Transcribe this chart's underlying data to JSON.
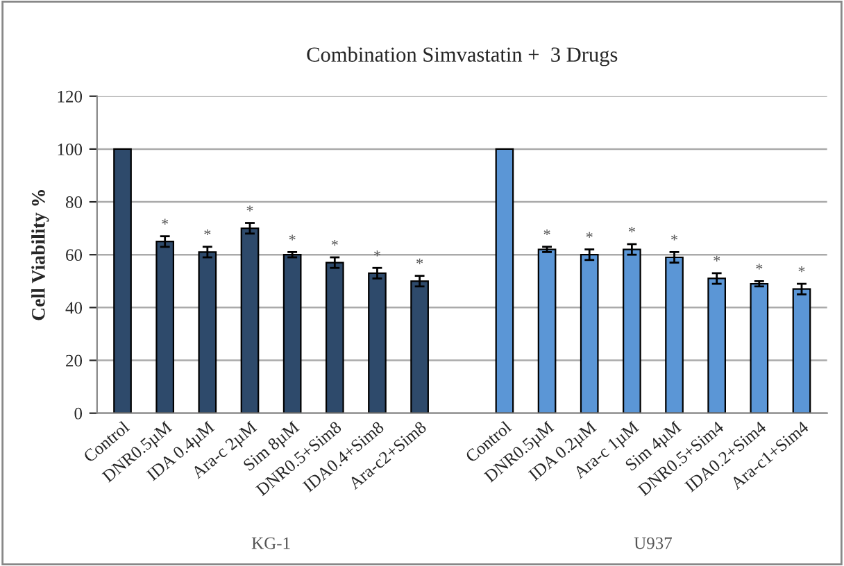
{
  "chart_data": {
    "type": "bar",
    "title": "Combination Simvastatin +  3 Drugs",
    "ylabel": "Cell Viability %",
    "categories": [
      "Control",
      "DNR0.5µM",
      "IDA 0.4µM",
      "Ara-c 2µM",
      "Sim 8µM",
      "DNR0.5+Sim8",
      "IDA0.4+Sim8",
      "Ara-c2+Sim8",
      null,
      "Control",
      "DNR0.5µM",
      "IDA 0.2µM",
      "Ara-c 1µM",
      "Sim 4µM",
      "DNR0.5+Sim4",
      "IDA0.2+Sim4",
      "Ara-c1+Sim4"
    ],
    "values": [
      100,
      65,
      61,
      70,
      60,
      57,
      53,
      50,
      null,
      100,
      62,
      60,
      62,
      59,
      51,
      49,
      47
    ],
    "errors": [
      null,
      2,
      2,
      2,
      1,
      2,
      2,
      2,
      null,
      null,
      1,
      2,
      2,
      2,
      2,
      1,
      2
    ],
    "value_labels": [
      null,
      "*",
      "*",
      "*",
      "*",
      "*",
      "*",
      "*",
      null,
      null,
      "*",
      "*",
      "*",
      "*",
      "*",
      "*",
      "*"
    ],
    "colors": [
      "#2e4a6b",
      "#2e4a6b",
      "#2e4a6b",
      "#2e4a6b",
      "#2e4a6b",
      "#2e4a6b",
      "#2e4a6b",
      "#2e4a6b",
      "#2e4a6b",
      "#5b96d6",
      "#5b96d6",
      "#5b96d6",
      "#5b96d6",
      "#5b96d6",
      "#5b96d6",
      "#5b96d6",
      "#5b96d6"
    ],
    "annotations": [
      "KG-1",
      "U937"
    ],
    "ylim": [
      0,
      120
    ],
    "yticks": [
      0,
      20,
      40,
      60,
      80,
      100,
      120
    ],
    "grid": "y"
  }
}
